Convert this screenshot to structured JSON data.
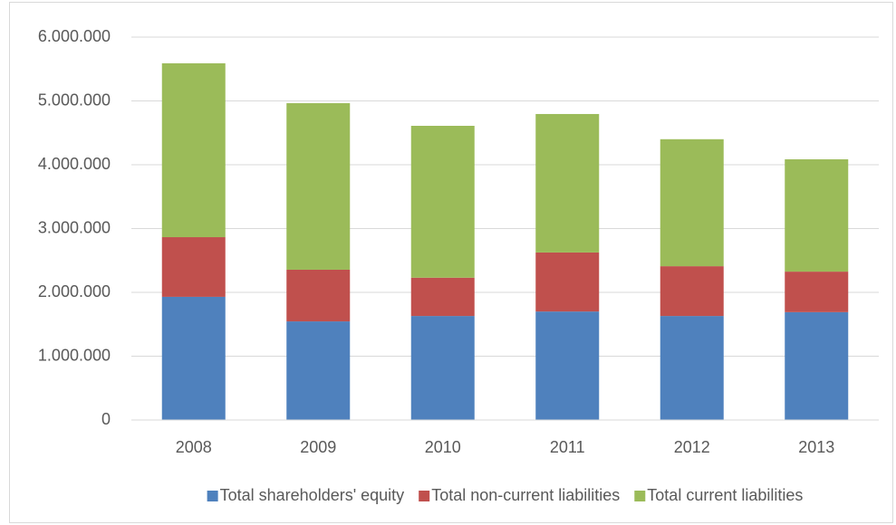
{
  "chart_data": {
    "type": "stacked_bar",
    "categories": [
      "2008",
      "2009",
      "2010",
      "2011",
      "2012",
      "2013"
    ],
    "series": [
      {
        "name": "Total shareholders' equity",
        "color": "#4f81bd",
        "values": [
          1930000,
          1545000,
          1630000,
          1700000,
          1630000,
          1690000
        ]
      },
      {
        "name": "Total non-current liabilities",
        "color": "#c0504d",
        "values": [
          935000,
          810000,
          600000,
          925000,
          780000,
          635000
        ]
      },
      {
        "name": "Total current liabilities",
        "color": "#9bbb59",
        "values": [
          2725000,
          2610000,
          2380000,
          2170000,
          1990000,
          1760000
        ]
      }
    ],
    "ylim": [
      0,
      6000000
    ],
    "yticks": [
      0,
      {
        "value": 1000000,
        "label": "1.000.000"
      },
      {
        "value": 2000000,
        "label": "2.000.000"
      },
      {
        "value": 3000000,
        "label": "3.000.000"
      },
      {
        "value": 4000000,
        "label": "4.000.000"
      },
      {
        "value": 5000000,
        "label": "5.000.000"
      },
      {
        "value": 6000000,
        "label": "6.000.000"
      }
    ],
    "grid": true,
    "legend": "bottom"
  }
}
